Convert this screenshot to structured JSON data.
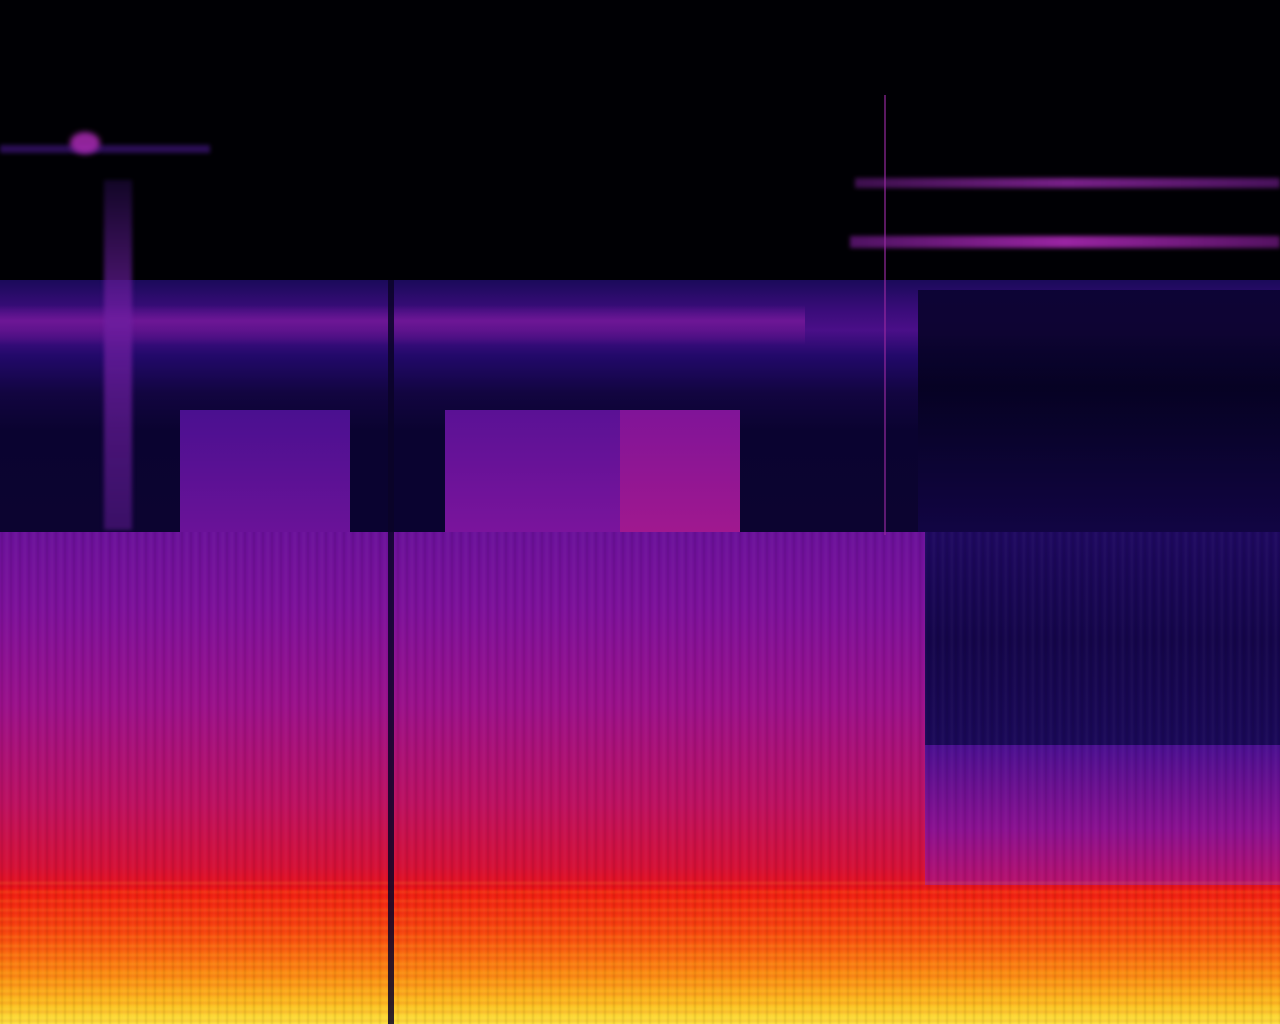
{
  "image": {
    "kind": "spectrogram",
    "colormap": "inferno-like",
    "colors": {
      "background": "#000004",
      "low_intensity": "#1a0a5a",
      "mid_intensity": "#7c109a",
      "high_intensity": "#e5101c",
      "peak_intensity": "#fde640"
    }
  }
}
